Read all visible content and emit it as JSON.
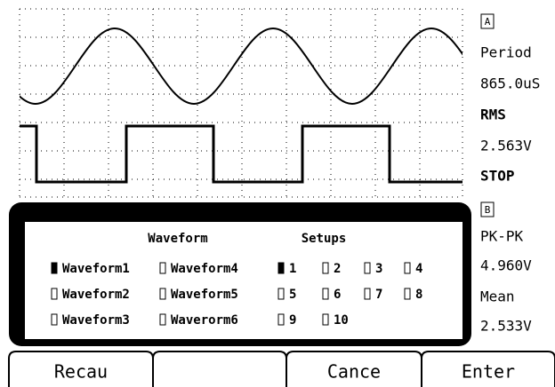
{
  "channel_a": {
    "badge": "A",
    "readouts": [
      {
        "label": "Period",
        "value": "865.0uS"
      },
      {
        "label": "RMS",
        "value": "2.563V"
      }
    ],
    "status": "STOP"
  },
  "channel_b": {
    "badge": "B",
    "readouts": [
      {
        "label": "PK-PK",
        "value": "4.960V"
      },
      {
        "label": "Mean",
        "value": "2.533V"
      }
    ]
  },
  "dialog": {
    "headers": [
      "Waveform",
      "Setups"
    ],
    "waveforms": [
      {
        "label": "Waveform1",
        "checked": true
      },
      {
        "label": "Waveform2",
        "checked": false
      },
      {
        "label": "Waveform3",
        "checked": false
      },
      {
        "label": "Waveform4",
        "checked": false
      },
      {
        "label": "Waveform5",
        "checked": false
      },
      {
        "label": "Waverorm6",
        "checked": false
      }
    ],
    "setups": [
      {
        "label": "1",
        "checked": true
      },
      {
        "label": "2",
        "checked": false
      },
      {
        "label": "3",
        "checked": false
      },
      {
        "label": "4",
        "checked": false
      },
      {
        "label": "5",
        "checked": false
      },
      {
        "label": "6",
        "checked": false
      },
      {
        "label": "7",
        "checked": false
      },
      {
        "label": "8",
        "checked": false
      },
      {
        "label": "9",
        "checked": false
      },
      {
        "label": "10",
        "checked": false
      }
    ]
  },
  "buttons": [
    "Recau",
    "",
    "Cance",
    "Enter"
  ]
}
